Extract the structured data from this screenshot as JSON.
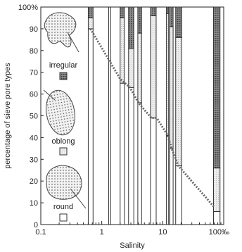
{
  "chart_data": {
    "type": "bar",
    "stacked": true,
    "title": "",
    "xlabel": "Salinity",
    "ylabel": "percentage of sieve pore types",
    "x_scale": "log",
    "xlim": [
      0.1,
      100
    ],
    "ylim": [
      0,
      100
    ],
    "x_ticks": [
      {
        "value": 0.1,
        "label": "0.1"
      },
      {
        "value": 1,
        "label": "1"
      },
      {
        "value": 10,
        "label": "10"
      },
      {
        "value": 100,
        "label": "100‰"
      }
    ],
    "y_ticks": [
      {
        "value": 0,
        "label": "0"
      },
      {
        "value": 10,
        "label": "10"
      },
      {
        "value": 20,
        "label": "20"
      },
      {
        "value": 30,
        "label": "30"
      },
      {
        "value": 40,
        "label": "40"
      },
      {
        "value": 50,
        "label": "50"
      },
      {
        "value": 60,
        "label": "60"
      },
      {
        "value": 70,
        "label": "70"
      },
      {
        "value": 80,
        "label": "80"
      },
      {
        "value": 90,
        "label": "90"
      },
      {
        "value": 100,
        "label": "100%"
      }
    ],
    "grid": false,
    "legend_position": "left, inside plot",
    "legend": [
      {
        "name": "irregular",
        "pattern": "dense-dotted",
        "color": "#555555"
      },
      {
        "name": "oblong",
        "pattern": "light-dotted",
        "color": "#d8d8d8"
      },
      {
        "name": "round",
        "pattern": "none",
        "color": "#ffffff"
      }
    ],
    "series_order": [
      "round",
      "oblong",
      "irregular"
    ],
    "bars": [
      {
        "x_from": 0.6,
        "x_to": 0.72,
        "round": 90,
        "oblong": 5,
        "irregular": 5
      },
      {
        "x_from": 1.3,
        "x_to": 1.4,
        "round": 100,
        "oblong": 0,
        "irregular": 0
      },
      {
        "x_from": 2.0,
        "x_to": 2.35,
        "round": 65,
        "oblong": 30,
        "irregular": 5
      },
      {
        "x_from": 2.75,
        "x_to": 3.35,
        "round": 63,
        "oblong": 18,
        "irregular": 19
      },
      {
        "x_from": 3.9,
        "x_to": 4.5,
        "round": 56,
        "oblong": 32,
        "irregular": 12
      },
      {
        "x_from": 6.3,
        "x_to": 7.8,
        "round": 49,
        "oblong": 47,
        "irregular": 4
      },
      {
        "x_from": 11.5,
        "x_to": 12.5,
        "round": 41,
        "oblong": 56,
        "irregular": 3
      },
      {
        "x_from": 13.0,
        "x_to": 14.8,
        "round": 35,
        "oblong": 56,
        "irregular": 9
      },
      {
        "x_from": 16.3,
        "x_to": 20.5,
        "round": 27,
        "oblong": 59,
        "irregular": 14
      },
      {
        "x_from": 68,
        "x_to": 87,
        "round": 6,
        "oblong": 20,
        "irregular": 74
      }
    ],
    "trend_line": {
      "style": "dotted",
      "x": [
        0.65,
        2.0,
        2.9,
        4.0,
        6.5,
        8.0,
        12.0,
        14.0,
        18.0,
        70
      ],
      "y": [
        90,
        67,
        63,
        56,
        49,
        49,
        41,
        35,
        27,
        8
      ]
    }
  }
}
